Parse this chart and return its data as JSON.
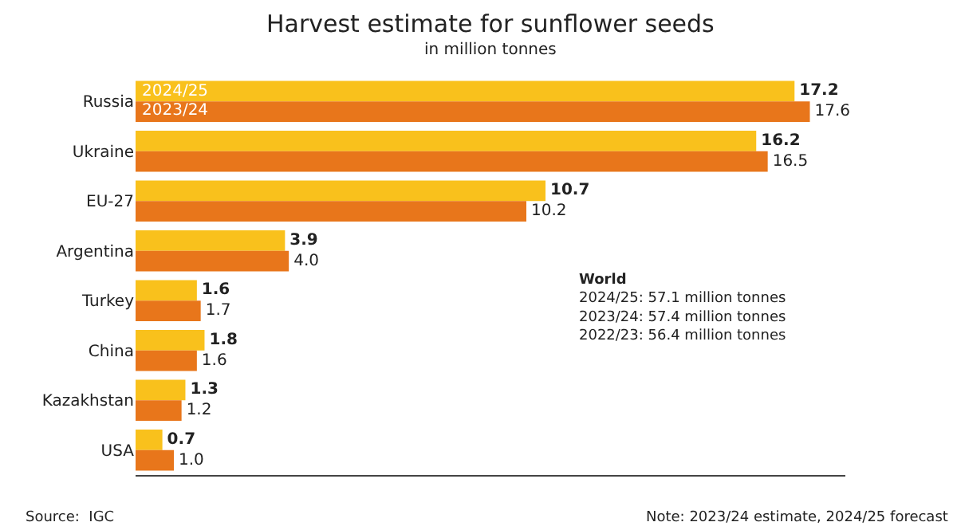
{
  "chart_data": {
    "type": "bar",
    "orientation": "horizontal",
    "title": "Harvest estimate for sunflower seeds",
    "subtitle": "in million tonnes",
    "categories": [
      "Russia",
      "Ukraine",
      "EU-27",
      "Argentina",
      "Turkey",
      "China",
      "Kazakhstan",
      "USA"
    ],
    "series": [
      {
        "name": "2024/25",
        "color": "#f9c11c",
        "values": [
          17.2,
          16.2,
          10.7,
          3.9,
          1.6,
          1.8,
          1.3,
          0.7
        ],
        "value_labels": [
          "17.2",
          "16.2",
          "10.7",
          "3.9",
          "1.6",
          "1.8",
          "1.3",
          "0.7"
        ]
      },
      {
        "name": "2023/24",
        "color": "#e8761b",
        "values": [
          17.6,
          16.5,
          10.2,
          4.0,
          1.7,
          1.6,
          1.2,
          1.0
        ],
        "value_labels": [
          "17.6",
          "16.5",
          "10.2",
          "4.0",
          "1.7",
          "1.6",
          "1.2",
          "1.0"
        ]
      }
    ],
    "tick_labels": "y",
    "legend": false,
    "annotations": [
      "World\n2024/25: 57.1 million tonnes\n2023/24: 57.4 million tonnes\n2022/23: 56.4 million tonnes",
      "Source:  IGC",
      "Note: 2023/24 estimate, 2024/25 forecast"
    ]
  }
}
